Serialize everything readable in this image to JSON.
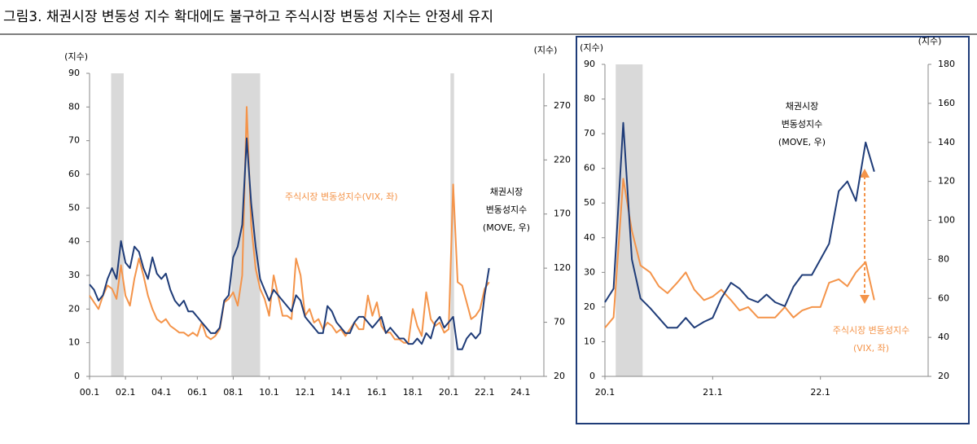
{
  "title": "그림3. 채권시장 변동성 지수 확대에도 불구하고 주식시장 변동성 지수는 안정세 유지",
  "chart_data": [
    {
      "type": "line",
      "ylabel": "(지수)",
      "y2label": "(지수)",
      "xlim": [
        2000,
        2025.3
      ],
      "xticks": [
        {
          "value": 2000,
          "label": "00.1"
        },
        {
          "value": 2002,
          "label": "02.1"
        },
        {
          "value": 2004,
          "label": "04.1"
        },
        {
          "value": 2006,
          "label": "06.1"
        },
        {
          "value": 2008,
          "label": "08.1"
        },
        {
          "value": 2010,
          "label": "10.1"
        },
        {
          "value": 2012,
          "label": "12.1"
        },
        {
          "value": 2014,
          "label": "14.1"
        },
        {
          "value": 2016,
          "label": "16.1"
        },
        {
          "value": 2018,
          "label": "18.1"
        },
        {
          "value": 2020,
          "label": "20.1"
        },
        {
          "value": 2022,
          "label": "22.1"
        },
        {
          "value": 2024,
          "label": "24.1"
        }
      ],
      "ylim": [
        0,
        90
      ],
      "yticks": [
        0,
        10,
        20,
        30,
        40,
        50,
        60,
        70,
        80,
        90
      ],
      "y2lim": [
        20,
        300
      ],
      "y2ticks": [
        20,
        70,
        120,
        170,
        220,
        270
      ],
      "shaded_periods": [
        [
          2001.2,
          2001.9
        ],
        [
          2007.9,
          2009.5
        ],
        [
          2020.1,
          2020.3
        ]
      ],
      "shade_color": "#d9d9d9",
      "x": [
        2000,
        2000.25,
        2000.5,
        2000.75,
        2001,
        2001.25,
        2001.5,
        2001.75,
        2002,
        2002.25,
        2002.5,
        2002.75,
        2003,
        2003.25,
        2003.5,
        2003.75,
        2004,
        2004.25,
        2004.5,
        2004.75,
        2005,
        2005.25,
        2005.5,
        2005.75,
        2006,
        2006.25,
        2006.5,
        2006.75,
        2007,
        2007.25,
        2007.5,
        2007.75,
        2008,
        2008.25,
        2008.5,
        2008.75,
        2009,
        2009.25,
        2009.5,
        2009.75,
        2010,
        2010.25,
        2010.5,
        2010.75,
        2011,
        2011.25,
        2011.5,
        2011.75,
        2012,
        2012.25,
        2012.5,
        2012.75,
        2013,
        2013.25,
        2013.5,
        2013.75,
        2014,
        2014.25,
        2014.5,
        2014.75,
        2015,
        2015.25,
        2015.5,
        2015.75,
        2016,
        2016.25,
        2016.5,
        2016.75,
        2017,
        2017.25,
        2017.5,
        2017.75,
        2018,
        2018.25,
        2018.5,
        2018.75,
        2019,
        2019.25,
        2019.5,
        2019.75,
        2020,
        2020.25,
        2020.5,
        2020.75,
        2021,
        2021.25,
        2021.5,
        2021.75,
        2022,
        2022.25
      ],
      "series": [
        {
          "color": "#f4944a",
          "values": [
            24,
            22,
            20,
            24,
            27,
            26,
            23,
            33,
            24,
            21,
            29,
            35,
            30,
            24,
            20,
            17,
            16,
            17,
            15,
            14,
            13,
            13,
            12,
            13,
            12,
            16,
            12,
            11,
            12,
            14,
            22,
            23,
            25,
            21,
            30,
            80,
            45,
            32,
            26,
            23,
            18,
            30,
            24,
            18,
            18,
            17,
            35,
            30,
            18,
            20,
            16,
            17,
            14,
            16,
            15,
            13,
            14,
            12,
            14,
            16,
            14,
            14,
            24,
            18,
            22,
            15,
            13,
            13,
            11,
            11,
            10,
            10,
            20,
            15,
            12,
            25,
            17,
            15,
            16,
            13,
            14,
            57,
            28,
            27,
            22,
            17,
            18,
            20,
            26,
            28
          ]
        },
        {
          "color": "#1f3c78",
          "axis": "y2",
          "values": [
            105,
            100,
            90,
            95,
            110,
            120,
            110,
            145,
            125,
            120,
            140,
            135,
            120,
            110,
            130,
            115,
            110,
            115,
            100,
            90,
            85,
            90,
            80,
            80,
            75,
            70,
            65,
            60,
            60,
            65,
            90,
            95,
            130,
            140,
            160,
            240,
            180,
            140,
            110,
            100,
            90,
            100,
            95,
            90,
            85,
            80,
            95,
            90,
            75,
            70,
            65,
            60,
            60,
            85,
            80,
            70,
            65,
            60,
            60,
            70,
            75,
            75,
            70,
            65,
            70,
            75,
            60,
            65,
            60,
            55,
            55,
            50,
            50,
            55,
            50,
            60,
            55,
            70,
            75,
            65,
            70,
            75,
            45,
            45,
            55,
            60,
            55,
            60,
            95,
            120
          ]
        }
      ],
      "annotations": [
        {
          "lines": [
            "주식시장 변동성지수(VIX, 좌)"
          ],
          "color": "#f4944a"
        },
        {
          "lines": [
            "채권시장",
            "변동성지수",
            "(MOVE, 우)"
          ],
          "color": "#000000"
        }
      ]
    },
    {
      "type": "line",
      "ylabel": "(지수)",
      "y2label": "(지수)",
      "xlim": [
        2020,
        2023
      ],
      "xticks": [
        {
          "value": 2020,
          "label": "20.1"
        },
        {
          "value": 2021,
          "label": "21.1"
        },
        {
          "value": 2022,
          "label": "22.1"
        }
      ],
      "ylim": [
        0,
        90
      ],
      "yticks": [
        0,
        10,
        20,
        30,
        40,
        50,
        60,
        70,
        80,
        90
      ],
      "y2lim": [
        20,
        180
      ],
      "y2ticks": [
        20,
        40,
        60,
        80,
        100,
        120,
        140,
        160,
        180
      ],
      "shaded_periods": [
        [
          2020.1,
          2020.35
        ]
      ],
      "shade_color": "#d9d9d9",
      "x": [
        2020,
        2020.08,
        2020.17,
        2020.25,
        2020.33,
        2020.42,
        2020.5,
        2020.58,
        2020.67,
        2020.75,
        2020.83,
        2020.92,
        2021,
        2021.08,
        2021.17,
        2021.25,
        2021.33,
        2021.42,
        2021.5,
        2021.58,
        2021.67,
        2021.75,
        2021.83,
        2021.92,
        2022,
        2022.08,
        2022.17,
        2022.25,
        2022.33,
        2022.42,
        2022.5
      ],
      "series": [
        {
          "color": "#f4944a",
          "values": [
            14,
            17,
            57,
            42,
            32,
            30,
            26,
            24,
            27,
            30,
            25,
            22,
            23,
            25,
            22,
            19,
            20,
            17,
            17,
            17,
            20,
            17,
            19,
            20,
            20,
            27,
            28,
            26,
            30,
            33,
            22
          ]
        },
        {
          "color": "#1f3c78",
          "axis": "y2",
          "values": [
            58,
            65,
            150,
            80,
            60,
            55,
            50,
            45,
            45,
            50,
            45,
            48,
            50,
            60,
            68,
            65,
            60,
            58,
            62,
            58,
            56,
            66,
            72,
            72,
            80,
            88,
            115,
            120,
            110,
            140,
            125
          ]
        }
      ],
      "annotations": [
        {
          "lines": [
            "채권시장",
            "변동성지수",
            "(MOVE, 우)"
          ],
          "color": "#000000"
        },
        {
          "lines": [
            "주식시장 변동성지수",
            "(VIX, 좌)"
          ],
          "color": "#f4944a"
        }
      ]
    }
  ]
}
